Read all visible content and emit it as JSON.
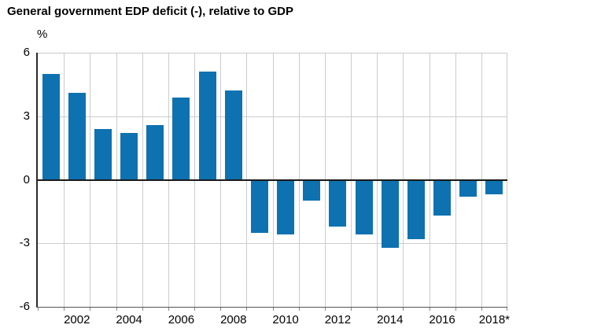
{
  "title": "General government EDP deficit (-), relative to GDP",
  "chart_data": {
    "type": "bar",
    "title": "General government EDP deficit (-), relative to GDP",
    "unit_label": "%",
    "xlabel": "",
    "ylabel": "%",
    "categories": [
      "2001",
      "2002",
      "2003",
      "2004",
      "2005",
      "2006",
      "2007",
      "2008",
      "2009",
      "2010",
      "2011",
      "2012",
      "2013",
      "2014",
      "2015",
      "2016",
      "2017",
      "2018*"
    ],
    "values": [
      5.0,
      4.1,
      2.4,
      2.2,
      2.6,
      3.9,
      5.1,
      4.2,
      -2.5,
      -2.6,
      -1.0,
      -2.2,
      -2.6,
      -3.2,
      -2.8,
      -1.7,
      -0.8,
      -0.7
    ],
    "x_tick_labels": [
      "2002",
      "2004",
      "2006",
      "2008",
      "2010",
      "2012",
      "2014",
      "2016",
      "2018*"
    ],
    "x_tick_label_indices": [
      1,
      3,
      5,
      7,
      9,
      11,
      13,
      15,
      17
    ],
    "y_ticks": [
      6,
      3,
      0,
      -3,
      -6
    ],
    "h_gridlines_at": [
      3,
      -3
    ],
    "ylim": [
      -6,
      6
    ],
    "grid": true,
    "legend": "none"
  },
  "colors": {
    "bar": "#0e72b1",
    "grid": "#cccccc",
    "zero_line": "#1a1a1a",
    "left_axis": "#2b2b2b",
    "bottom_axis": "#555555",
    "frame": "#c9c9c9",
    "tick": "#8a8a8a",
    "text": "#000000",
    "background": "#ffffff"
  }
}
